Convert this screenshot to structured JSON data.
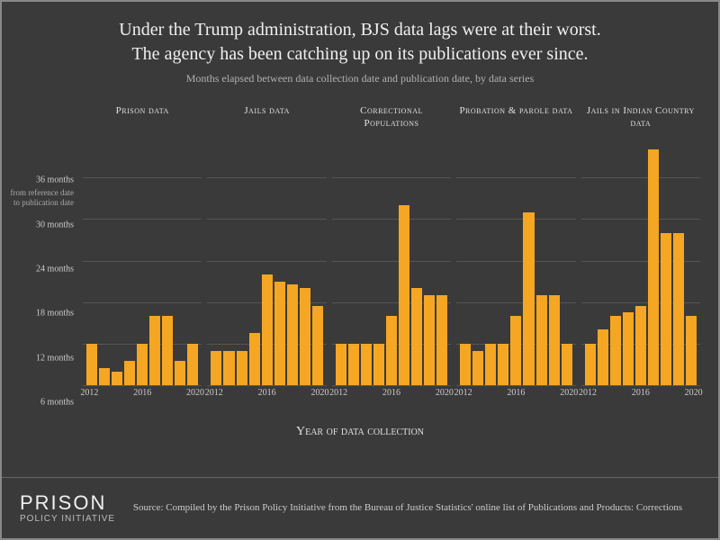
{
  "title_line1": "Under the Trump administration, BJS data lags were at their worst.",
  "title_line2": "The agency has been catching up on its publications ever since.",
  "subtitle": "Months elapsed between data collection date and publication date, by data series",
  "xaxis_label": "Year of data collection",
  "y": {
    "min": 6,
    "max": 42,
    "ticks": [
      6,
      12,
      18,
      24,
      30,
      36
    ],
    "tick_labels": [
      "6 months",
      "12 months",
      "18 months",
      "24 months",
      "30 months",
      "36 months"
    ],
    "sub_label": "from reference date\nto publication date"
  },
  "years": [
    2012,
    2013,
    2014,
    2015,
    2016,
    2017,
    2018,
    2019,
    2020
  ],
  "xtick_years": [
    2012,
    2016,
    2020
  ],
  "bar_color": "#f5a623",
  "grid_color": "#555555",
  "axis_color": "#999999",
  "background": "#3a3a3a",
  "panels": [
    {
      "title": "Prison data",
      "values": [
        12,
        8.5,
        8,
        9.5,
        12,
        16,
        16,
        9.5,
        12
      ]
    },
    {
      "title": "Jails data",
      "values": [
        11,
        11,
        11,
        13.5,
        22,
        21,
        20.5,
        20,
        17.5
      ]
    },
    {
      "title": "Correctional Populations",
      "values": [
        12,
        12,
        12,
        12,
        16,
        32,
        20,
        19,
        19
      ]
    },
    {
      "title": "Probation & parole data",
      "values": [
        12,
        11,
        12,
        12,
        16,
        31,
        19,
        19,
        12
      ]
    },
    {
      "title": "Jails in Indian Country data",
      "values": [
        12,
        14,
        16,
        16.5,
        17.5,
        40,
        28,
        28,
        16
      ]
    }
  ],
  "logo": {
    "top": "PRISON",
    "bottom": "POLICY INITIATIVE"
  },
  "source": "Source: Compiled by the Prison Policy Initiative from the Bureau of Justice Statistics' online list of Publications and Products: Corrections"
}
